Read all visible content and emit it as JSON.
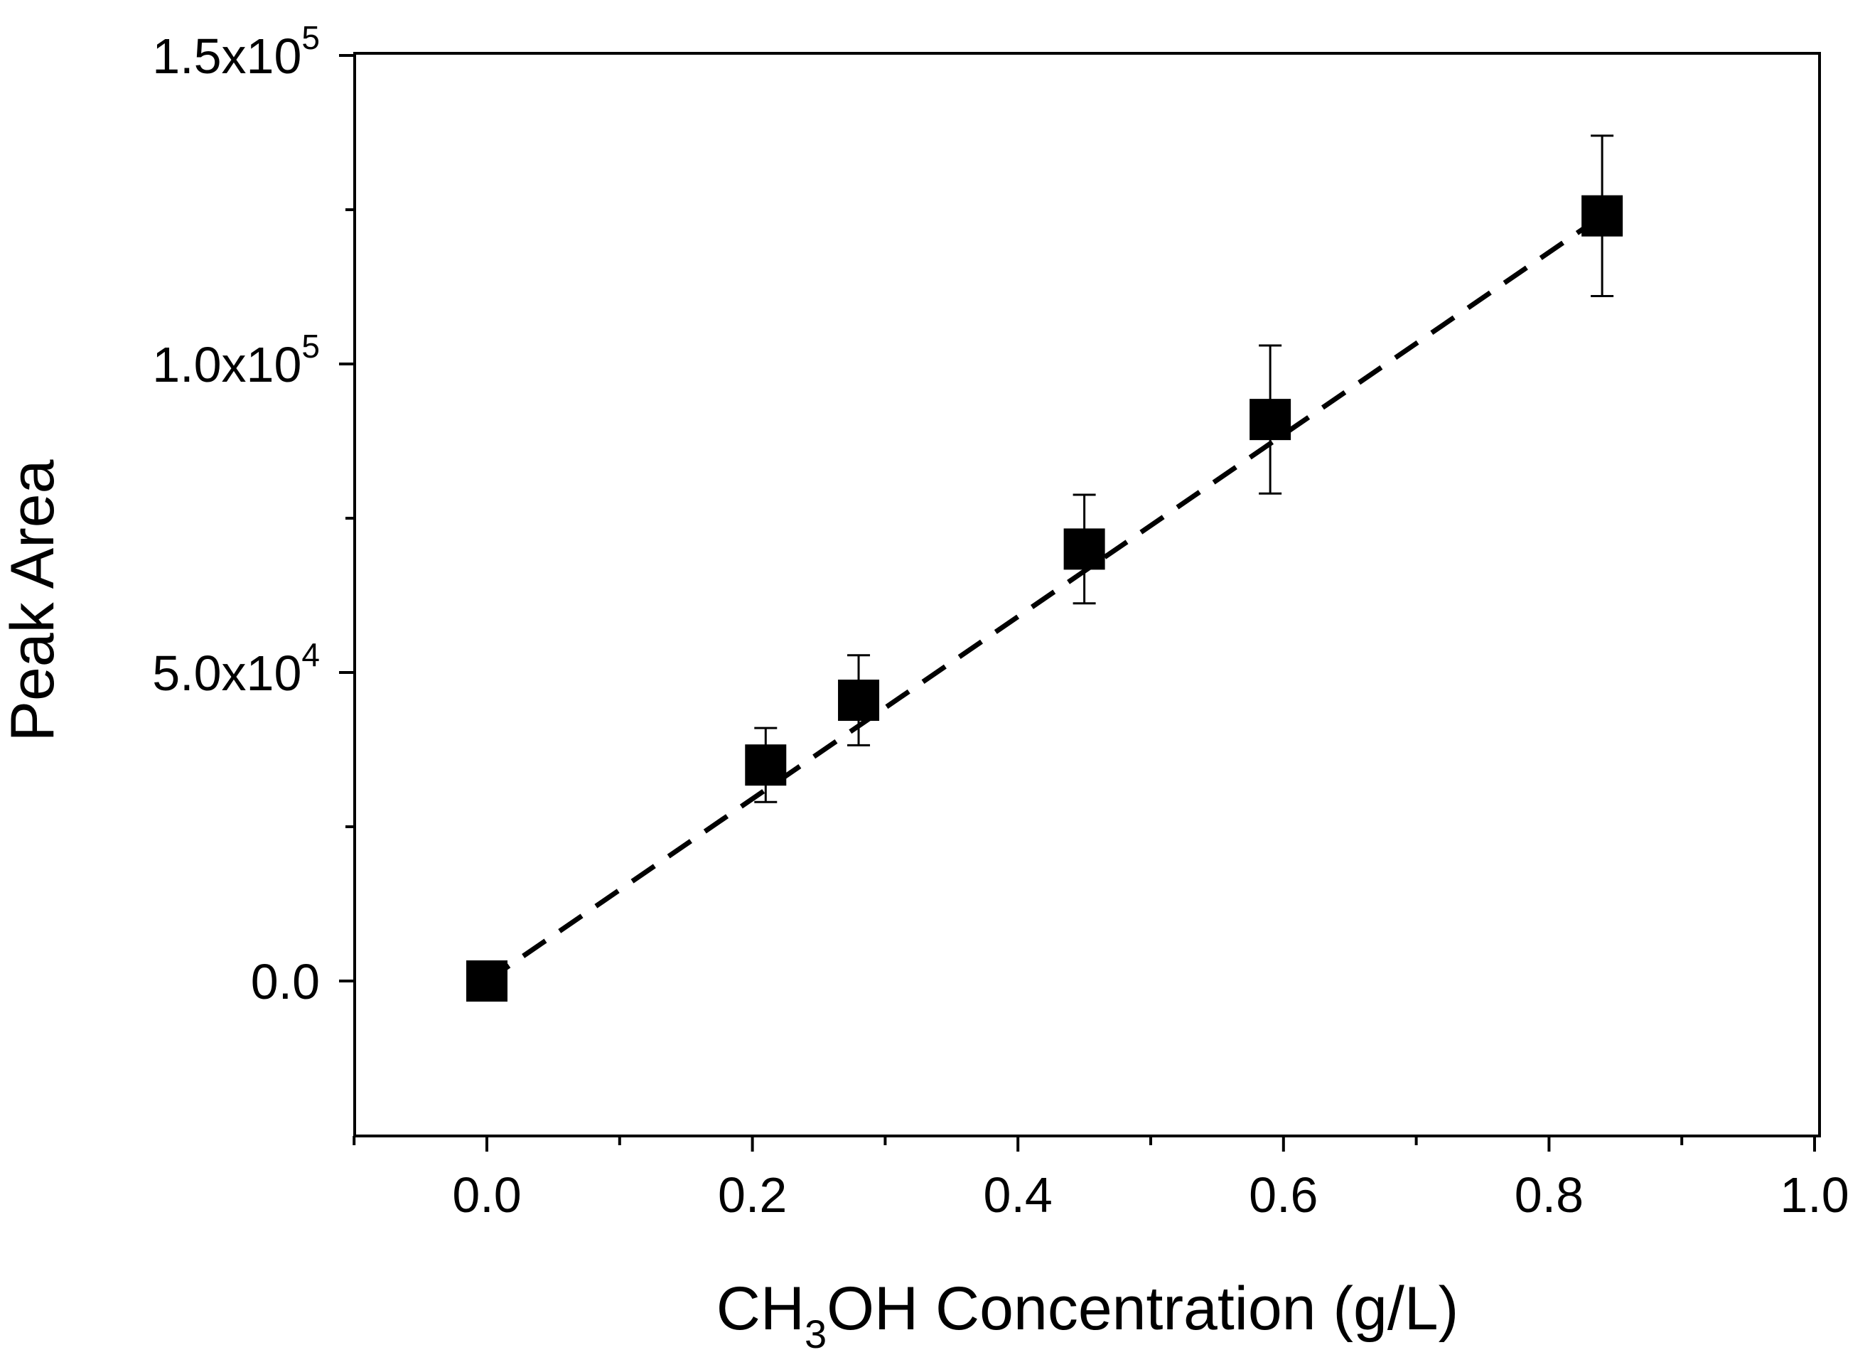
{
  "chart_data": {
    "type": "scatter",
    "xlabel_main": "CH",
    "xlabel_sub": "3",
    "xlabel_rest": "OH Concentration (g/L)",
    "ylabel": "Peak Area",
    "xlim": [
      -0.1,
      1.0
    ],
    "ylim": [
      -25000,
      150000
    ],
    "x_ticks": [
      {
        "value": 0.0,
        "label": "0.0"
      },
      {
        "value": 0.2,
        "label": "0.2"
      },
      {
        "value": 0.4,
        "label": "0.4"
      },
      {
        "value": 0.6,
        "label": "0.6"
      },
      {
        "value": 0.8,
        "label": "0.8"
      },
      {
        "value": 1.0,
        "label": "1.0"
      }
    ],
    "x_minor_ticks": [
      -0.1,
      0.1,
      0.3,
      0.5,
      0.7,
      0.9
    ],
    "y_ticks": [
      {
        "value": 0,
        "mantissa": "0.0",
        "exponent": ""
      },
      {
        "value": 50000,
        "mantissa": "5.0x10",
        "exponent": "4"
      },
      {
        "value": 100000,
        "mantissa": "1.0x10",
        "exponent": "5"
      },
      {
        "value": 150000,
        "mantissa": "1.5x10",
        "exponent": "5"
      }
    ],
    "y_minor_ticks": [
      25000,
      75000,
      125000
    ],
    "series": [
      {
        "name": "Peak Area",
        "marker": "square",
        "color": "#000000",
        "points": [
          {
            "x": 0.0,
            "y": 0,
            "err": 0
          },
          {
            "x": 0.21,
            "y": 35000,
            "err": 6000
          },
          {
            "x": 0.28,
            "y": 45500,
            "err": 7300
          },
          {
            "x": 0.45,
            "y": 70000,
            "err": 8800
          },
          {
            "x": 0.59,
            "y": 91000,
            "err": 12000
          },
          {
            "x": 0.84,
            "y": 124000,
            "err": 13000
          }
        ]
      }
    ],
    "fit_line": {
      "style": "dashed",
      "color": "#000000",
      "x": [
        0.0,
        0.84
      ],
      "y": [
        0,
        124000
      ]
    }
  }
}
